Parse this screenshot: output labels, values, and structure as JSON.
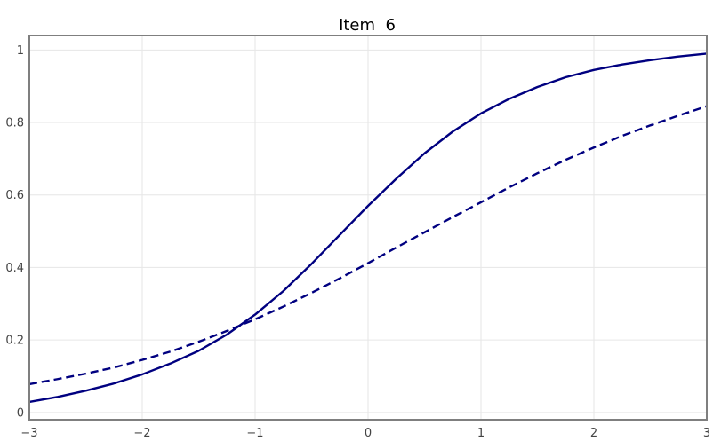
{
  "chart_data": {
    "type": "line",
    "title": "Item  6",
    "xlabel": "",
    "ylabel": "",
    "xlim": [
      -3,
      3
    ],
    "ylim": [
      -0.02,
      1.04
    ],
    "x_ticks": [
      -3,
      -2,
      -1,
      0,
      1,
      2,
      3
    ],
    "x_tick_labels": [
      "−3",
      "−2",
      "−1",
      "0",
      "1",
      "2",
      "3"
    ],
    "y_ticks": [
      0,
      0.2,
      0.4,
      0.6,
      0.8,
      1
    ],
    "y_tick_labels": [
      "0",
      "0.2",
      "0.4",
      "0.6",
      "0.8",
      "1"
    ],
    "grid": true,
    "legend": "none",
    "series": [
      {
        "style": "solid",
        "color": "#000080",
        "x": [
          -3,
          -2.75,
          -2.5,
          -2.25,
          -2,
          -1.75,
          -1.5,
          -1.25,
          -1,
          -0.75,
          -0.5,
          -0.25,
          0,
          0.25,
          0.5,
          0.75,
          1,
          1.25,
          1.5,
          1.75,
          2,
          2.25,
          2.5,
          2.75,
          3
        ],
        "y": [
          0.029,
          0.043,
          0.06,
          0.08,
          0.105,
          0.135,
          0.17,
          0.215,
          0.27,
          0.335,
          0.41,
          0.49,
          0.57,
          0.645,
          0.715,
          0.775,
          0.825,
          0.865,
          0.898,
          0.925,
          0.945,
          0.96,
          0.972,
          0.982,
          0.99
        ]
      },
      {
        "style": "dashed",
        "color": "#000080",
        "x": [
          -3,
          -2.75,
          -2.5,
          -2.25,
          -2,
          -1.75,
          -1.5,
          -1.25,
          -1,
          -0.75,
          -0.5,
          -0.25,
          0,
          0.25,
          0.5,
          0.75,
          1,
          1.25,
          1.5,
          1.75,
          2,
          2.25,
          2.5,
          2.75,
          3
        ],
        "y": [
          0.078,
          0.092,
          0.107,
          0.124,
          0.145,
          0.168,
          0.195,
          0.225,
          0.257,
          0.292,
          0.33,
          0.37,
          0.412,
          0.455,
          0.497,
          0.539,
          0.58,
          0.621,
          0.66,
          0.697,
          0.731,
          0.763,
          0.792,
          0.819,
          0.845
        ]
      }
    ]
  }
}
